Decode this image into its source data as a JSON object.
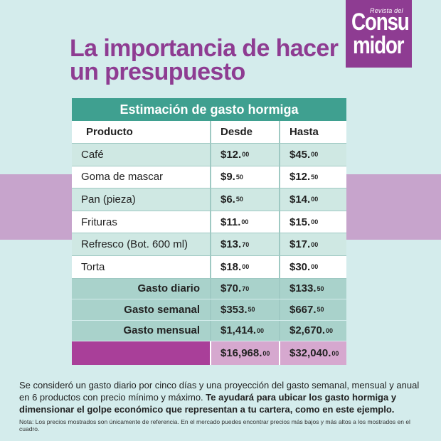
{
  "logo": {
    "small": "Revista del",
    "line1": "Consu",
    "line2": "midor"
  },
  "title": "La importancia de hacer un presupuesto",
  "table": {
    "heading": "Estimación de gasto hormiga",
    "columns": [
      "Producto",
      "Desde",
      "Hasta"
    ],
    "rows": [
      {
        "product": "Café",
        "from": "$12.",
        "from_c": "00",
        "to": "$45.",
        "to_c": "00"
      },
      {
        "product": "Goma de mascar",
        "from": "$9.",
        "from_c": "50",
        "to": "$12.",
        "to_c": "50"
      },
      {
        "product": "Pan (pieza)",
        "from": "$6.",
        "from_c": "50",
        "to": "$14.",
        "to_c": "00"
      },
      {
        "product": "Frituras",
        "from": "$11.",
        "from_c": "00",
        "to": "$15.",
        "to_c": "00"
      },
      {
        "product": "Refresco (Bot. 600 ml)",
        "from": "$13.",
        "from_c": "70",
        "to": "$17.",
        "to_c": "00"
      },
      {
        "product": "Torta",
        "from": "$18.",
        "from_c": "00",
        "to": "$30.",
        "to_c": "00"
      }
    ],
    "summary": [
      {
        "label": "Gasto diario",
        "from": "$70.",
        "from_c": "70",
        "to": "$133.",
        "to_c": "50"
      },
      {
        "label": "Gasto semanal",
        "from": "$353.",
        "from_c": "50",
        "to": "$667.",
        "to_c": "50"
      },
      {
        "label": "Gasto mensual",
        "from": "$1,414.",
        "from_c": "00",
        "to": "$2,670.",
        "to_c": "00"
      }
    ],
    "total": {
      "from": "$16,968.",
      "from_c": "00",
      "to": "$32,040.",
      "to_c": "00"
    }
  },
  "body_text": {
    "plain": "Se consideró un gasto diario por cinco días y una proyección del gasto semanal, mensual y anual en 6 productos con precio mínimo y máximo. ",
    "bold": "Te ayudará para ubicar los gasto hormiga y dimensionar el golpe económico que representan a tu cartera, como en este ejemplo."
  },
  "note": "Nota: Los precios mostrados son únicamente de referencia. En el mercado puedes encontrar precios más bajos y más altos a los mostrados en el cuadro."
}
